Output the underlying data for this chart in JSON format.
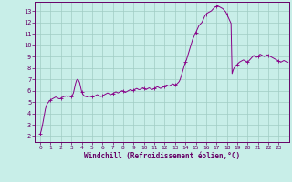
{
  "xlabel": "Windchill (Refroidissement éolien,°C)",
  "background_color": "#c8eee8",
  "line_color": "#880088",
  "xlim": [
    -0.5,
    24
  ],
  "ylim": [
    1.5,
    13.8
  ],
  "xticks": [
    0,
    1,
    2,
    3,
    4,
    5,
    6,
    7,
    8,
    9,
    10,
    11,
    12,
    13,
    14,
    15,
    16,
    17,
    18,
    19,
    20,
    21,
    22,
    23
  ],
  "yticks": [
    2,
    3,
    4,
    5,
    6,
    7,
    8,
    9,
    10,
    11,
    12,
    13
  ],
  "grid_color": "#a0ccc4",
  "x": [
    0.0,
    0.1,
    0.2,
    0.3,
    0.4,
    0.5,
    0.6,
    0.7,
    0.8,
    0.9,
    1.0,
    1.1,
    1.2,
    1.3,
    1.4,
    1.5,
    1.6,
    1.7,
    1.8,
    1.9,
    2.0,
    2.1,
    2.2,
    2.3,
    2.4,
    2.5,
    2.6,
    2.7,
    2.8,
    2.9,
    3.0,
    3.1,
    3.2,
    3.3,
    3.4,
    3.5,
    3.6,
    3.7,
    3.8,
    3.9,
    4.0,
    4.1,
    4.2,
    4.3,
    4.4,
    4.5,
    4.6,
    4.7,
    4.8,
    4.9,
    5.0,
    5.1,
    5.2,
    5.3,
    5.4,
    5.5,
    5.6,
    5.7,
    5.8,
    5.9,
    6.0,
    6.1,
    6.2,
    6.3,
    6.4,
    6.5,
    6.6,
    6.7,
    6.8,
    6.9,
    7.0,
    7.1,
    7.2,
    7.3,
    7.4,
    7.5,
    7.6,
    7.7,
    7.8,
    7.9,
    8.0,
    8.1,
    8.2,
    8.3,
    8.4,
    8.5,
    8.6,
    8.7,
    8.8,
    8.9,
    9.0,
    9.1,
    9.2,
    9.3,
    9.4,
    9.5,
    9.6,
    9.7,
    9.8,
    9.9,
    10.0,
    10.1,
    10.2,
    10.3,
    10.4,
    10.5,
    10.6,
    10.7,
    10.8,
    10.9,
    11.0,
    11.1,
    11.2,
    11.3,
    11.4,
    11.5,
    11.6,
    11.7,
    11.8,
    11.9,
    12.0,
    12.1,
    12.2,
    12.3,
    12.4,
    12.5,
    12.6,
    12.7,
    12.8,
    12.9,
    13.0,
    13.1,
    13.2,
    13.3,
    13.4,
    13.5,
    13.6,
    13.7,
    13.8,
    13.9,
    14.0,
    14.1,
    14.2,
    14.3,
    14.4,
    14.5,
    14.6,
    14.7,
    14.8,
    14.9,
    15.0,
    15.1,
    15.2,
    15.3,
    15.4,
    15.5,
    15.6,
    15.7,
    15.8,
    15.9,
    16.0,
    16.1,
    16.2,
    16.3,
    16.4,
    16.5,
    16.6,
    16.7,
    16.8,
    16.9,
    17.0,
    17.1,
    17.2,
    17.3,
    17.4,
    17.5,
    17.6,
    17.7,
    17.8,
    17.9,
    18.0,
    18.1,
    18.2,
    18.3,
    18.4,
    18.5,
    18.6,
    18.7,
    18.8,
    18.9,
    19.0,
    19.1,
    19.2,
    19.3,
    19.4,
    19.5,
    19.6,
    19.7,
    19.8,
    19.9,
    20.0,
    20.1,
    20.2,
    20.3,
    20.4,
    20.5,
    20.6,
    20.7,
    20.8,
    20.9,
    21.0,
    21.1,
    21.2,
    21.3,
    21.4,
    21.5,
    21.6,
    21.7,
    21.8,
    21.9,
    22.0,
    22.1,
    22.2,
    22.3,
    22.4,
    22.5,
    22.6,
    22.7,
    22.8,
    22.9,
    23.0,
    23.1,
    23.2,
    23.3,
    23.4,
    23.5,
    23.6,
    23.7,
    23.8,
    23.9
  ],
  "y": [
    2.2,
    2.5,
    2.9,
    3.4,
    3.9,
    4.4,
    4.7,
    4.9,
    5.0,
    5.1,
    5.2,
    5.25,
    5.3,
    5.35,
    5.4,
    5.45,
    5.4,
    5.35,
    5.3,
    5.3,
    5.35,
    5.4,
    5.45,
    5.5,
    5.5,
    5.55,
    5.5,
    5.5,
    5.55,
    5.5,
    5.5,
    5.6,
    5.8,
    6.2,
    6.6,
    6.9,
    7.0,
    6.9,
    6.7,
    6.3,
    5.9,
    5.7,
    5.6,
    5.5,
    5.5,
    5.45,
    5.5,
    5.55,
    5.5,
    5.5,
    5.5,
    5.45,
    5.5,
    5.55,
    5.6,
    5.65,
    5.6,
    5.55,
    5.5,
    5.5,
    5.55,
    5.6,
    5.65,
    5.7,
    5.75,
    5.8,
    5.75,
    5.7,
    5.65,
    5.7,
    5.75,
    5.8,
    5.85,
    5.9,
    5.85,
    5.8,
    5.85,
    5.9,
    5.95,
    6.0,
    5.95,
    5.9,
    5.85,
    5.9,
    5.95,
    6.0,
    6.05,
    6.1,
    6.05,
    6.0,
    6.05,
    6.1,
    6.15,
    6.2,
    6.15,
    6.1,
    6.1,
    6.15,
    6.2,
    6.25,
    6.2,
    6.15,
    6.1,
    6.15,
    6.2,
    6.25,
    6.2,
    6.15,
    6.1,
    6.15,
    6.2,
    6.25,
    6.3,
    6.35,
    6.3,
    6.25,
    6.2,
    6.25,
    6.3,
    6.35,
    6.4,
    6.45,
    6.5,
    6.45,
    6.4,
    6.45,
    6.5,
    6.55,
    6.6,
    6.55,
    6.5,
    6.55,
    6.6,
    6.7,
    6.8,
    7.0,
    7.3,
    7.6,
    7.9,
    8.2,
    8.5,
    8.7,
    9.0,
    9.3,
    9.6,
    9.9,
    10.2,
    10.5,
    10.7,
    10.9,
    11.1,
    11.3,
    11.5,
    11.7,
    11.8,
    11.9,
    12.0,
    12.2,
    12.4,
    12.6,
    12.7,
    12.8,
    12.85,
    12.9,
    12.95,
    13.0,
    13.1,
    13.2,
    13.3,
    13.35,
    13.4,
    13.45,
    13.4,
    13.35,
    13.3,
    13.25,
    13.2,
    13.1,
    13.0,
    12.9,
    12.7,
    12.5,
    12.3,
    12.1,
    11.9,
    7.5,
    7.8,
    8.0,
    8.1,
    8.2,
    8.3,
    8.4,
    8.5,
    8.55,
    8.6,
    8.65,
    8.7,
    8.65,
    8.6,
    8.55,
    8.5,
    8.6,
    8.7,
    8.8,
    8.9,
    9.0,
    9.1,
    9.0,
    8.9,
    8.95,
    9.0,
    9.1,
    9.2,
    9.15,
    9.1,
    9.05,
    9.0,
    9.05,
    9.1,
    9.15,
    9.1,
    9.05,
    9.0,
    8.95,
    8.9,
    8.85,
    8.8,
    8.75,
    8.7,
    8.65,
    8.6,
    8.55,
    8.5,
    8.55,
    8.6,
    8.65,
    8.6,
    8.55,
    8.5,
    8.5
  ]
}
